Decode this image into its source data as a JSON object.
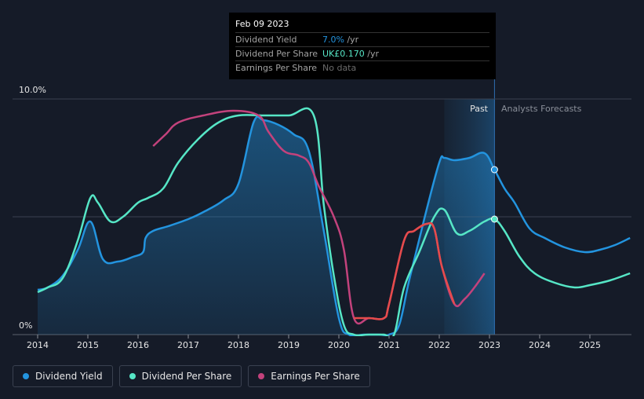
{
  "tooltip": {
    "date": "Feb 09 2023",
    "rows": [
      {
        "label": "Dividend Yield",
        "value": "7.0%",
        "unit": " /yr"
      },
      {
        "label": "Dividend Per Share",
        "value": "UK£0.170",
        "unit": " /yr"
      },
      {
        "label": "Earnings Per Share",
        "value": "No data",
        "unit": ""
      }
    ]
  },
  "labels": {
    "past": "Past",
    "forecast": "Analysts Forecasts"
  },
  "legend": [
    {
      "label": "Dividend Yield",
      "color": "#2394df"
    },
    {
      "label": "Dividend Per Share",
      "color": "#56e6c6"
    },
    {
      "label": "Earnings Per Share",
      "color": "#c3427c"
    }
  ],
  "colors": {
    "background": "#151b28",
    "yield": "#2394df",
    "dps": "#56e6c6",
    "eps": "#c3427c",
    "eps_negative": "#e64b4b",
    "grid": "#3a4150"
  },
  "chart_data": {
    "type": "line",
    "ylim": [
      0,
      10
    ],
    "yticks": [
      {
        "v": 0,
        "label": "0%"
      },
      {
        "v": 10,
        "label": "10.0%"
      }
    ],
    "xlim": [
      2014,
      2025.8
    ],
    "xticks": [
      "2014",
      "2015",
      "2016",
      "2017",
      "2018",
      "2019",
      "2020",
      "2021",
      "2022",
      "2023",
      "2024",
      "2025"
    ],
    "forecast_start": 2023.1,
    "past_band_start": 2022.1,
    "series": [
      {
        "name": "Dividend Yield",
        "key": "yield",
        "x": [
          2014,
          2014.2,
          2014.5,
          2014.8,
          2015.05,
          2015.3,
          2015.6,
          2015.9,
          2016.1,
          2016.15,
          2016.3,
          2016.6,
          2017,
          2017.3,
          2017.7,
          2018,
          2018.3,
          2018.5,
          2018.8,
          2019.1,
          2019.4,
          2019.7,
          2020.0,
          2020.2,
          2020.5,
          2020.8,
          2021.0,
          2021.2,
          2021.4,
          2021.7,
          2022.0,
          2022.1,
          2022.3,
          2022.6,
          2022.9,
          2023.1,
          2023.3,
          2023.5,
          2023.8,
          2024.1,
          2024.5,
          2024.9,
          2025.2,
          2025.5,
          2025.8
        ],
        "y": [
          1.9,
          2.0,
          2.5,
          3.6,
          4.8,
          3.2,
          3.1,
          3.3,
          3.5,
          4.1,
          4.4,
          4.6,
          4.9,
          5.2,
          5.7,
          6.4,
          9.0,
          9.1,
          8.9,
          8.5,
          7.8,
          4.4,
          0.7,
          0.0,
          0.0,
          0.0,
          0.0,
          0.4,
          2.3,
          4.9,
          7.3,
          7.5,
          7.4,
          7.5,
          7.7,
          7.0,
          6.2,
          5.6,
          4.5,
          4.1,
          3.7,
          3.5,
          3.6,
          3.8,
          4.1
        ]
      },
      {
        "name": "Dividend Per Share",
        "key": "dps",
        "x": [
          2014,
          2014.2,
          2014.5,
          2014.8,
          2015.05,
          2015.2,
          2015.45,
          2015.7,
          2016.0,
          2016.2,
          2016.5,
          2016.8,
          2017.2,
          2017.6,
          2018.0,
          2018.5,
          2019.0,
          2019.5,
          2019.7,
          2019.9,
          2020.1,
          2020.3,
          2020.6,
          2020.9,
          2021.1,
          2021.3,
          2021.6,
          2021.9,
          2022.1,
          2022.35,
          2022.6,
          2022.9,
          2023.1,
          2023.3,
          2023.6,
          2023.9,
          2024.3,
          2024.7,
          2025.0,
          2025.4,
          2025.8
        ],
        "y": [
          1.8,
          2.0,
          2.4,
          4.0,
          5.8,
          5.6,
          4.8,
          5.0,
          5.6,
          5.8,
          6.2,
          7.3,
          8.3,
          9.0,
          9.3,
          9.3,
          9.3,
          9.3,
          5.5,
          2.5,
          0.4,
          0.0,
          0.0,
          0.0,
          0.0,
          2.0,
          3.5,
          5.0,
          5.3,
          4.3,
          4.4,
          4.8,
          4.9,
          4.4,
          3.3,
          2.6,
          2.2,
          2.0,
          2.1,
          2.3,
          2.6
        ]
      },
      {
        "name": "Earnings Per Share",
        "key": "eps",
        "x": [
          2016.3,
          2016.55,
          2016.8,
          2017.3,
          2017.9,
          2018.4,
          2018.6,
          2018.9,
          2019.2,
          2019.4,
          2019.6,
          2019.9,
          2020.1,
          2020.3,
          2020.6,
          2020.9,
          2021.0,
          2021.3,
          2021.5,
          2021.75,
          2021.9,
          2022.05,
          2022.3,
          2022.5,
          2022.7,
          2022.9
        ],
        "y": [
          8.0,
          8.5,
          9.0,
          9.3,
          9.5,
          9.3,
          8.6,
          7.8,
          7.6,
          7.3,
          6.3,
          5.0,
          3.6,
          0.7,
          0.7,
          0.7,
          1.3,
          4.0,
          4.4,
          4.7,
          4.5,
          2.9,
          1.3,
          1.5,
          2.0,
          2.6
        ]
      }
    ],
    "markers": [
      {
        "series": "yield",
        "x": 2023.1,
        "y": 7.0
      },
      {
        "series": "dps",
        "x": 2023.1,
        "y": 4.9
      }
    ]
  }
}
